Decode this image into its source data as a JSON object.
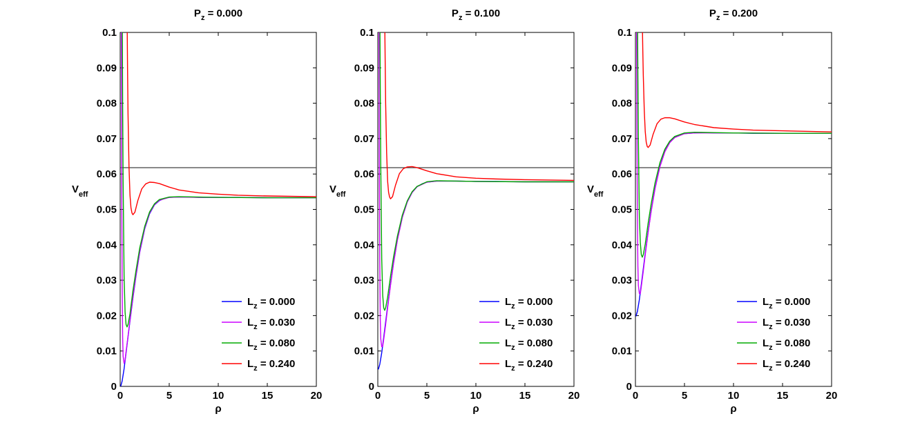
{
  "chart_data": [
    {
      "type": "line",
      "title": {
        "prefix": "P",
        "sub": "z",
        "value": " = 0.000"
      },
      "xlabel": "ρ",
      "ylabel": {
        "main": "V",
        "sub": "eff"
      },
      "xlim": [
        0,
        20
      ],
      "ylim": [
        0,
        0.1
      ],
      "xticks": [
        0,
        5,
        10,
        15,
        20
      ],
      "xtick_labels": [
        "0",
        "5",
        "10",
        "15",
        "20"
      ],
      "yticks": [
        0,
        0.01,
        0.02,
        0.03,
        0.04,
        0.05,
        0.06,
        0.07,
        0.08,
        0.09,
        0.1
      ],
      "ytick_labels": [
        "0",
        "0.01",
        "0.02",
        "0.03",
        "0.04",
        "0.05",
        "0.06",
        "0.07",
        "0.08",
        "0.09",
        "0.1"
      ],
      "reference_line": {
        "y": 0.0618,
        "color": "#404040"
      },
      "legend_position": "bottom-right",
      "series": [
        {
          "name": "L",
          "sub": "z",
          "value": " = 0.000",
          "color": "#0000ff",
          "x": [
            0.05,
            0.2,
            0.4,
            0.6,
            0.8,
            1.0,
            1.3,
            1.6,
            2.0,
            2.5,
            3.0,
            3.5,
            4.0,
            4.5,
            5.0,
            6.0,
            7.0,
            8.0,
            10.0,
            12.0,
            15.0,
            20.0
          ],
          "y": [
            0.0,
            0.0015,
            0.005,
            0.0095,
            0.014,
            0.0185,
            0.025,
            0.031,
            0.038,
            0.0445,
            0.0488,
            0.0513,
            0.0525,
            0.0531,
            0.0534,
            0.0535,
            0.0535,
            0.0534,
            0.0534,
            0.0534,
            0.0533,
            0.0533
          ]
        },
        {
          "name": "L",
          "sub": "z",
          "value": " = 0.030",
          "color": "#cc00ff",
          "x": [
            0.12,
            0.15,
            0.2,
            0.25,
            0.3,
            0.4,
            0.5,
            0.6,
            0.8,
            1.0,
            1.3,
            1.6,
            2.0,
            2.5,
            3.0,
            3.5,
            4.0,
            5.0,
            6.0,
            8.0,
            10.0,
            15.0,
            20.0
          ],
          "y": [
            0.1,
            0.06,
            0.03,
            0.014,
            0.0085,
            0.0065,
            0.0075,
            0.0098,
            0.0142,
            0.0188,
            0.0253,
            0.0313,
            0.0382,
            0.0447,
            0.049,
            0.0514,
            0.0526,
            0.0534,
            0.0535,
            0.0534,
            0.0534,
            0.0533,
            0.0533
          ]
        },
        {
          "name": "L",
          "sub": "z",
          "value": " = 0.080",
          "color": "#00aa00",
          "x": [
            0.22,
            0.25,
            0.3,
            0.4,
            0.5,
            0.6,
            0.7,
            0.8,
            1.0,
            1.3,
            1.6,
            2.0,
            2.5,
            3.0,
            3.5,
            4.0,
            5.0,
            6.0,
            8.0,
            10.0,
            15.0,
            20.0
          ],
          "y": [
            0.1,
            0.08,
            0.058,
            0.031,
            0.021,
            0.0175,
            0.0168,
            0.0175,
            0.0205,
            0.027,
            0.0325,
            0.0392,
            0.0452,
            0.0493,
            0.0516,
            0.0528,
            0.0535,
            0.0536,
            0.0535,
            0.0534,
            0.0533,
            0.0533
          ]
        },
        {
          "name": "L",
          "sub": "z",
          "value": " = 0.240",
          "color": "#ff0000",
          "x": [
            0.72,
            0.75,
            0.8,
            0.9,
            1.0,
            1.1,
            1.2,
            1.3,
            1.5,
            1.8,
            2.2,
            2.6,
            3.0,
            3.5,
            4.0,
            5.0,
            6.0,
            8.0,
            10.0,
            12.0,
            15.0,
            20.0
          ],
          "y": [
            0.1,
            0.09,
            0.077,
            0.062,
            0.054,
            0.0505,
            0.049,
            0.0485,
            0.0492,
            0.0525,
            0.0558,
            0.0572,
            0.0577,
            0.0576,
            0.0573,
            0.0563,
            0.0555,
            0.0547,
            0.0543,
            0.054,
            0.0538,
            0.0536
          ]
        }
      ]
    },
    {
      "type": "line",
      "title": {
        "prefix": "P",
        "sub": "z",
        "value": " = 0.100"
      },
      "xlabel": "ρ",
      "ylabel": {
        "main": "V",
        "sub": "eff"
      },
      "xlim": [
        0,
        20
      ],
      "ylim": [
        0,
        0.1
      ],
      "xticks": [
        0,
        5,
        10,
        15,
        20
      ],
      "xtick_labels": [
        "0",
        "5",
        "10",
        "15",
        "20"
      ],
      "yticks": [
        0,
        0.01,
        0.02,
        0.03,
        0.04,
        0.05,
        0.06,
        0.07,
        0.08,
        0.09,
        0.1
      ],
      "ytick_labels": [
        "0",
        "0.01",
        "0.02",
        "0.03",
        "0.04",
        "0.05",
        "0.06",
        "0.07",
        "0.08",
        "0.09",
        "0.1"
      ],
      "reference_line": {
        "y": 0.0618,
        "color": "#404040"
      },
      "legend_position": "bottom-right",
      "series": [
        {
          "name": "L",
          "sub": "z",
          "value": " = 0.000",
          "color": "#0000ff",
          "x": [
            0.05,
            0.2,
            0.4,
            0.6,
            0.8,
            1.0,
            1.3,
            1.6,
            2.0,
            2.5,
            3.0,
            3.5,
            4.0,
            4.5,
            5.0,
            6.0,
            7.0,
            8.0,
            10.0,
            12.0,
            15.0,
            20.0
          ],
          "y": [
            0.0048,
            0.0062,
            0.0095,
            0.0138,
            0.0182,
            0.0226,
            0.0289,
            0.0348,
            0.0415,
            0.0478,
            0.0521,
            0.0548,
            0.0564,
            0.0572,
            0.0577,
            0.058,
            0.058,
            0.058,
            0.0579,
            0.0579,
            0.0578,
            0.0578
          ]
        },
        {
          "name": "L",
          "sub": "z",
          "value": " = 0.030",
          "color": "#cc00ff",
          "x": [
            0.12,
            0.15,
            0.2,
            0.25,
            0.3,
            0.4,
            0.5,
            0.6,
            0.8,
            1.0,
            1.3,
            1.6,
            2.0,
            2.5,
            3.0,
            3.5,
            4.0,
            5.0,
            6.0,
            8.0,
            10.0,
            15.0,
            20.0
          ],
          "y": [
            0.1,
            0.065,
            0.035,
            0.019,
            0.0135,
            0.0112,
            0.0113,
            0.0132,
            0.0175,
            0.0222,
            0.0287,
            0.0347,
            0.0414,
            0.0478,
            0.0521,
            0.0548,
            0.0564,
            0.0577,
            0.058,
            0.058,
            0.0579,
            0.0578,
            0.0578
          ]
        },
        {
          "name": "L",
          "sub": "z",
          "value": " = 0.080",
          "color": "#00aa00",
          "x": [
            0.22,
            0.25,
            0.3,
            0.4,
            0.5,
            0.6,
            0.7,
            0.8,
            1.0,
            1.3,
            1.6,
            2.0,
            2.5,
            3.0,
            3.5,
            4.0,
            5.0,
            6.0,
            8.0,
            10.0,
            15.0,
            20.0
          ],
          "y": [
            0.1,
            0.085,
            0.063,
            0.036,
            0.0258,
            0.0222,
            0.0215,
            0.0222,
            0.0252,
            0.0312,
            0.0365,
            0.0425,
            0.0484,
            0.0524,
            0.055,
            0.0565,
            0.0578,
            0.0581,
            0.058,
            0.0579,
            0.0578,
            0.0578
          ]
        },
        {
          "name": "L",
          "sub": "z",
          "value": " = 0.240",
          "color": "#ff0000",
          "x": [
            0.72,
            0.75,
            0.8,
            0.9,
            1.0,
            1.1,
            1.2,
            1.3,
            1.5,
            1.8,
            2.2,
            2.6,
            3.0,
            3.5,
            4.0,
            5.0,
            6.0,
            8.0,
            10.0,
            12.0,
            15.0,
            20.0
          ],
          "y": [
            0.1,
            0.092,
            0.08,
            0.066,
            0.058,
            0.0548,
            0.0535,
            0.053,
            0.0536,
            0.0568,
            0.0601,
            0.0615,
            0.062,
            0.0621,
            0.0618,
            0.0609,
            0.0601,
            0.0592,
            0.0588,
            0.0586,
            0.0584,
            0.0582
          ]
        }
      ]
    },
    {
      "type": "line",
      "title": {
        "prefix": "P",
        "sub": "z",
        "value": " = 0.200"
      },
      "xlabel": "ρ",
      "ylabel": {
        "main": "V",
        "sub": "eff"
      },
      "xlim": [
        0,
        20
      ],
      "ylim": [
        0,
        0.1
      ],
      "xticks": [
        0,
        5,
        10,
        15,
        20
      ],
      "xtick_labels": [
        "0",
        "5",
        "10",
        "15",
        "20"
      ],
      "yticks": [
        0,
        0.01,
        0.02,
        0.03,
        0.04,
        0.05,
        0.06,
        0.07,
        0.08,
        0.09,
        0.1
      ],
      "ytick_labels": [
        "0",
        "0.01",
        "0.02",
        "0.03",
        "0.04",
        "0.05",
        "0.06",
        "0.07",
        "0.08",
        "0.09",
        "0.1"
      ],
      "reference_line": {
        "y": 0.0618,
        "color": "#404040"
      },
      "legend_position": "bottom-right",
      "series": [
        {
          "name": "L",
          "sub": "z",
          "value": " = 0.000",
          "color": "#0000ff",
          "x": [
            0.05,
            0.2,
            0.4,
            0.6,
            0.8,
            1.0,
            1.3,
            1.6,
            2.0,
            2.5,
            3.0,
            3.5,
            4.0,
            4.5,
            5.0,
            6.0,
            7.0,
            8.0,
            10.0,
            12.0,
            15.0,
            20.0
          ],
          "y": [
            0.0198,
            0.0212,
            0.0245,
            0.0288,
            0.0332,
            0.0376,
            0.0438,
            0.0495,
            0.056,
            0.0622,
            0.0664,
            0.0689,
            0.0703,
            0.071,
            0.0714,
            0.0716,
            0.0717,
            0.0716,
            0.0716,
            0.0715,
            0.0715,
            0.0715
          ]
        },
        {
          "name": "L",
          "sub": "z",
          "value": " = 0.030",
          "color": "#cc00ff",
          "x": [
            0.12,
            0.15,
            0.2,
            0.25,
            0.3,
            0.4,
            0.5,
            0.6,
            0.8,
            1.0,
            1.3,
            1.6,
            2.0,
            2.5,
            3.0,
            3.5,
            4.0,
            5.0,
            6.0,
            8.0,
            10.0,
            15.0,
            20.0
          ],
          "y": [
            0.1,
            0.075,
            0.048,
            0.034,
            0.0285,
            0.0262,
            0.0262,
            0.0282,
            0.0325,
            0.0372,
            0.0436,
            0.0494,
            0.0559,
            0.0621,
            0.0663,
            0.0689,
            0.0703,
            0.0714,
            0.0716,
            0.0716,
            0.0716,
            0.0715,
            0.0715
          ]
        },
        {
          "name": "L",
          "sub": "z",
          "value": " = 0.080",
          "color": "#00aa00",
          "x": [
            0.22,
            0.25,
            0.3,
            0.4,
            0.5,
            0.6,
            0.7,
            0.8,
            1.0,
            1.3,
            1.6,
            2.0,
            2.5,
            3.0,
            3.5,
            4.0,
            5.0,
            6.0,
            8.0,
            10.0,
            15.0,
            20.0
          ],
          "y": [
            0.1,
            0.088,
            0.07,
            0.048,
            0.0405,
            0.0372,
            0.0365,
            0.0372,
            0.0402,
            0.0462,
            0.0515,
            0.0575,
            0.0632,
            0.067,
            0.0693,
            0.0706,
            0.0716,
            0.0718,
            0.0717,
            0.0716,
            0.0715,
            0.0715
          ]
        },
        {
          "name": "L",
          "sub": "z",
          "value": " = 0.240",
          "color": "#ff0000",
          "x": [
            0.72,
            0.75,
            0.8,
            0.9,
            1.0,
            1.1,
            1.2,
            1.3,
            1.5,
            1.8,
            2.2,
            2.6,
            3.0,
            3.5,
            4.0,
            5.0,
            6.0,
            8.0,
            10.0,
            12.0,
            15.0,
            20.0
          ],
          "y": [
            0.1,
            0.095,
            0.088,
            0.078,
            0.072,
            0.069,
            0.0678,
            0.0675,
            0.0682,
            0.0712,
            0.0742,
            0.0755,
            0.0759,
            0.0759,
            0.0756,
            0.0747,
            0.074,
            0.0731,
            0.0727,
            0.0724,
            0.0722,
            0.0719
          ]
        }
      ]
    }
  ]
}
